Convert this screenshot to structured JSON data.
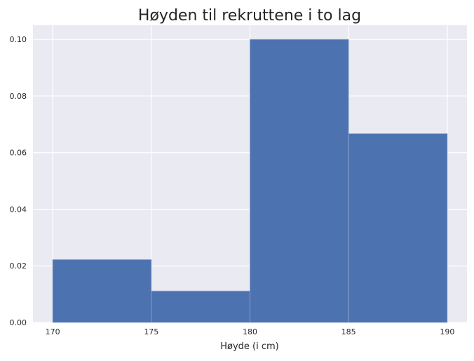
{
  "chart_data": {
    "type": "bar",
    "title": "Høyden til rekruttene i to lag",
    "xlabel": "Høyde (i cm)",
    "ylabel": "",
    "bins": [
      {
        "start": 170,
        "end": 175,
        "value": 0.0222
      },
      {
        "start": 175,
        "end": 180,
        "value": 0.0111
      },
      {
        "start": 180,
        "end": 185,
        "value": 0.1
      },
      {
        "start": 185,
        "end": 190,
        "value": 0.0667
      }
    ],
    "xlim": [
      169,
      191
    ],
    "ylim": [
      0,
      0.105
    ],
    "xticks": [
      170,
      175,
      180,
      185,
      190
    ],
    "xtick_labels": [
      "170",
      "175",
      "180",
      "185",
      "190"
    ],
    "yticks": [
      0,
      0.02,
      0.04,
      0.06,
      0.08,
      0.1
    ],
    "ytick_labels": [
      "0.00",
      "0.02",
      "0.04",
      "0.06",
      "0.08",
      "0.10"
    ],
    "grid": true,
    "colors": {
      "bar": "#4c72b0",
      "bar_edge": "#8fa6cf",
      "background": "#eaeaf2",
      "grid": "#ffffff",
      "text": "#262626"
    }
  }
}
